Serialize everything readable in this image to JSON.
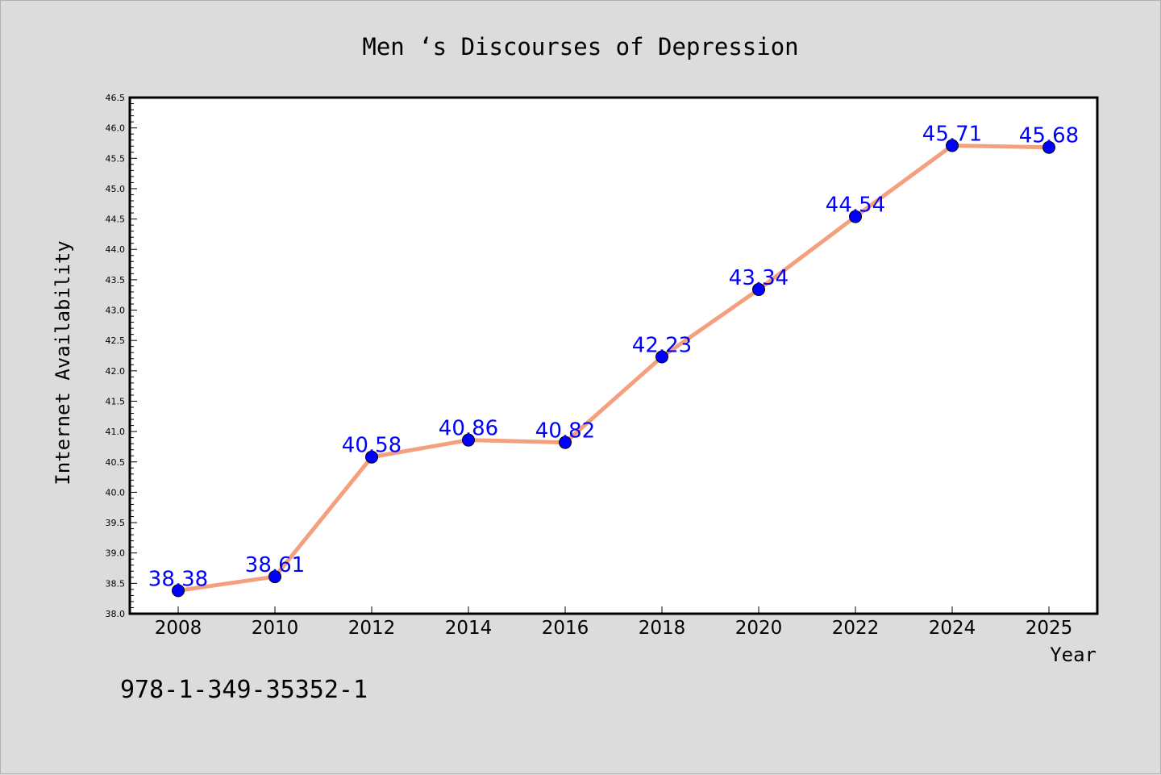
{
  "chart_data": {
    "type": "line",
    "title": "Men ‘s Discourses of Depression",
    "xlabel": "Year",
    "ylabel": "Internet Availability",
    "categories": [
      "2008",
      "2010",
      "2012",
      "2014",
      "2016",
      "2018",
      "2020",
      "2022",
      "2024",
      "2025"
    ],
    "series": [
      {
        "values": [
          38.38,
          38.61,
          40.58,
          40.86,
          40.82,
          42.23,
          43.34,
          44.54,
          45.71,
          45.68
        ],
        "labels": [
          "38.38",
          "38.61",
          "40.58",
          "40.86",
          "40.82",
          "42.23",
          "43.34",
          "44.54",
          "45.71",
          "45.68"
        ]
      }
    ],
    "ylim": [
      38.0,
      46.5
    ],
    "yticks": [
      "38.0",
      "38.5",
      "39.0",
      "39.5",
      "40.0",
      "40.5",
      "41.0",
      "41.5",
      "42.0",
      "42.5",
      "43.0",
      "43.5",
      "44.0",
      "44.5",
      "45.0",
      "45.5",
      "46.0",
      "46.5"
    ],
    "grid": false,
    "legend": "none",
    "colors": {
      "line": "#f4a07e",
      "marker": "#0000ff",
      "data_label": "#0000ff",
      "plot_background": "#ffffff",
      "page_background": "#dcdcdc"
    }
  },
  "footer": {
    "isbn": "978-1-349-35352-1"
  }
}
